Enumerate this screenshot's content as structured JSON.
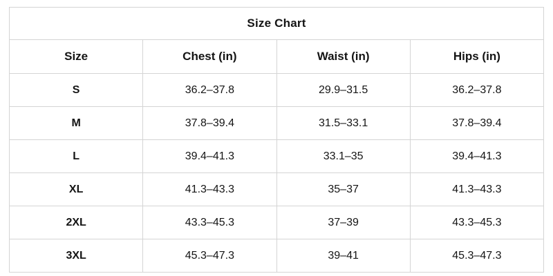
{
  "chart_data": {
    "type": "table",
    "title": "Size Chart",
    "columns": [
      "Size",
      "Chest (in)",
      "Waist (in)",
      "Hips (in)"
    ],
    "rows": [
      [
        "S",
        "36.2–37.8",
        "29.9–31.5",
        "36.2–37.8"
      ],
      [
        "M",
        "37.8–39.4",
        "31.5–33.1",
        "37.8–39.4"
      ],
      [
        "L",
        "39.4–41.3",
        "33.1–35",
        "39.4–41.3"
      ],
      [
        "XL",
        "41.3–43.3",
        "35–37",
        "41.3–43.3"
      ],
      [
        "2XL",
        "43.3–45.3",
        "37–39",
        "43.3–45.3"
      ],
      [
        "3XL",
        "45.3–47.3",
        "39–41",
        "45.3–47.3"
      ]
    ],
    "layout": {
      "grid": "on",
      "title_position": "top-center"
    },
    "colors": {
      "border": "#d4d4d4",
      "text": "#141414",
      "background": "#ffffff"
    }
  }
}
